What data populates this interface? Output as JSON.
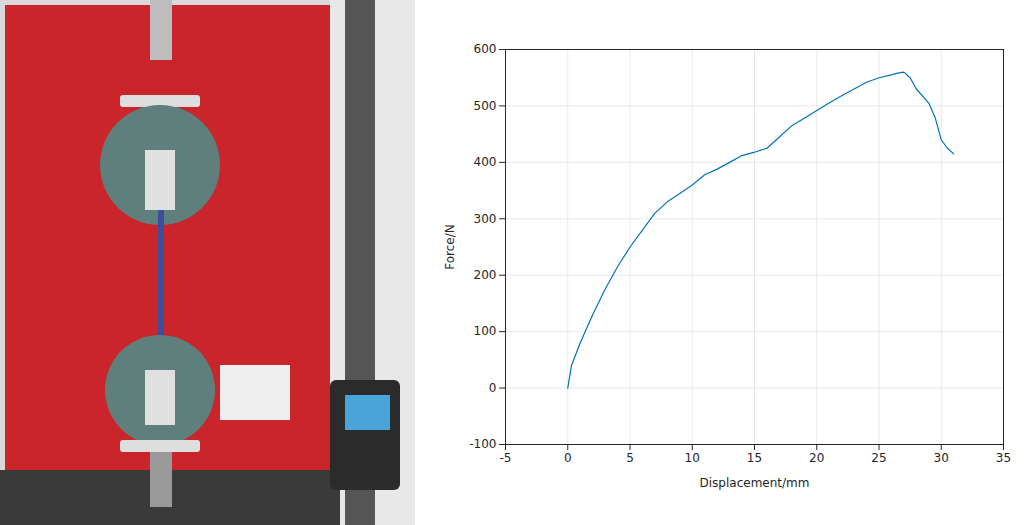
{
  "chart_data": {
    "type": "line",
    "xlabel": "Displacement/mm",
    "ylabel": "Force/N",
    "x": [
      0,
      0.3,
      1,
      2,
      3,
      4,
      5,
      6,
      7,
      8,
      9,
      10,
      11,
      12,
      13,
      14,
      15,
      16,
      17,
      18,
      19,
      20,
      21,
      22,
      23,
      24,
      25,
      26,
      26.5,
      27,
      27.5,
      28,
      29,
      29.5,
      30,
      30.5,
      31
    ],
    "values": [
      0,
      40,
      80,
      130,
      175,
      215,
      250,
      280,
      310,
      330,
      345,
      360,
      378,
      388,
      400,
      412,
      418,
      425,
      445,
      465,
      478,
      492,
      505,
      518,
      530,
      542,
      550,
      555,
      558,
      560,
      550,
      530,
      505,
      480,
      440,
      425,
      415
    ],
    "color": "#0072bd",
    "xlim": [
      -5,
      35
    ],
    "ylim": [
      -100,
      600
    ],
    "xticks": [
      -5,
      0,
      5,
      10,
      15,
      20,
      25,
      30,
      35
    ],
    "yticks": [
      -100,
      0,
      100,
      200,
      300,
      400,
      500,
      600
    ],
    "grid": true
  }
}
